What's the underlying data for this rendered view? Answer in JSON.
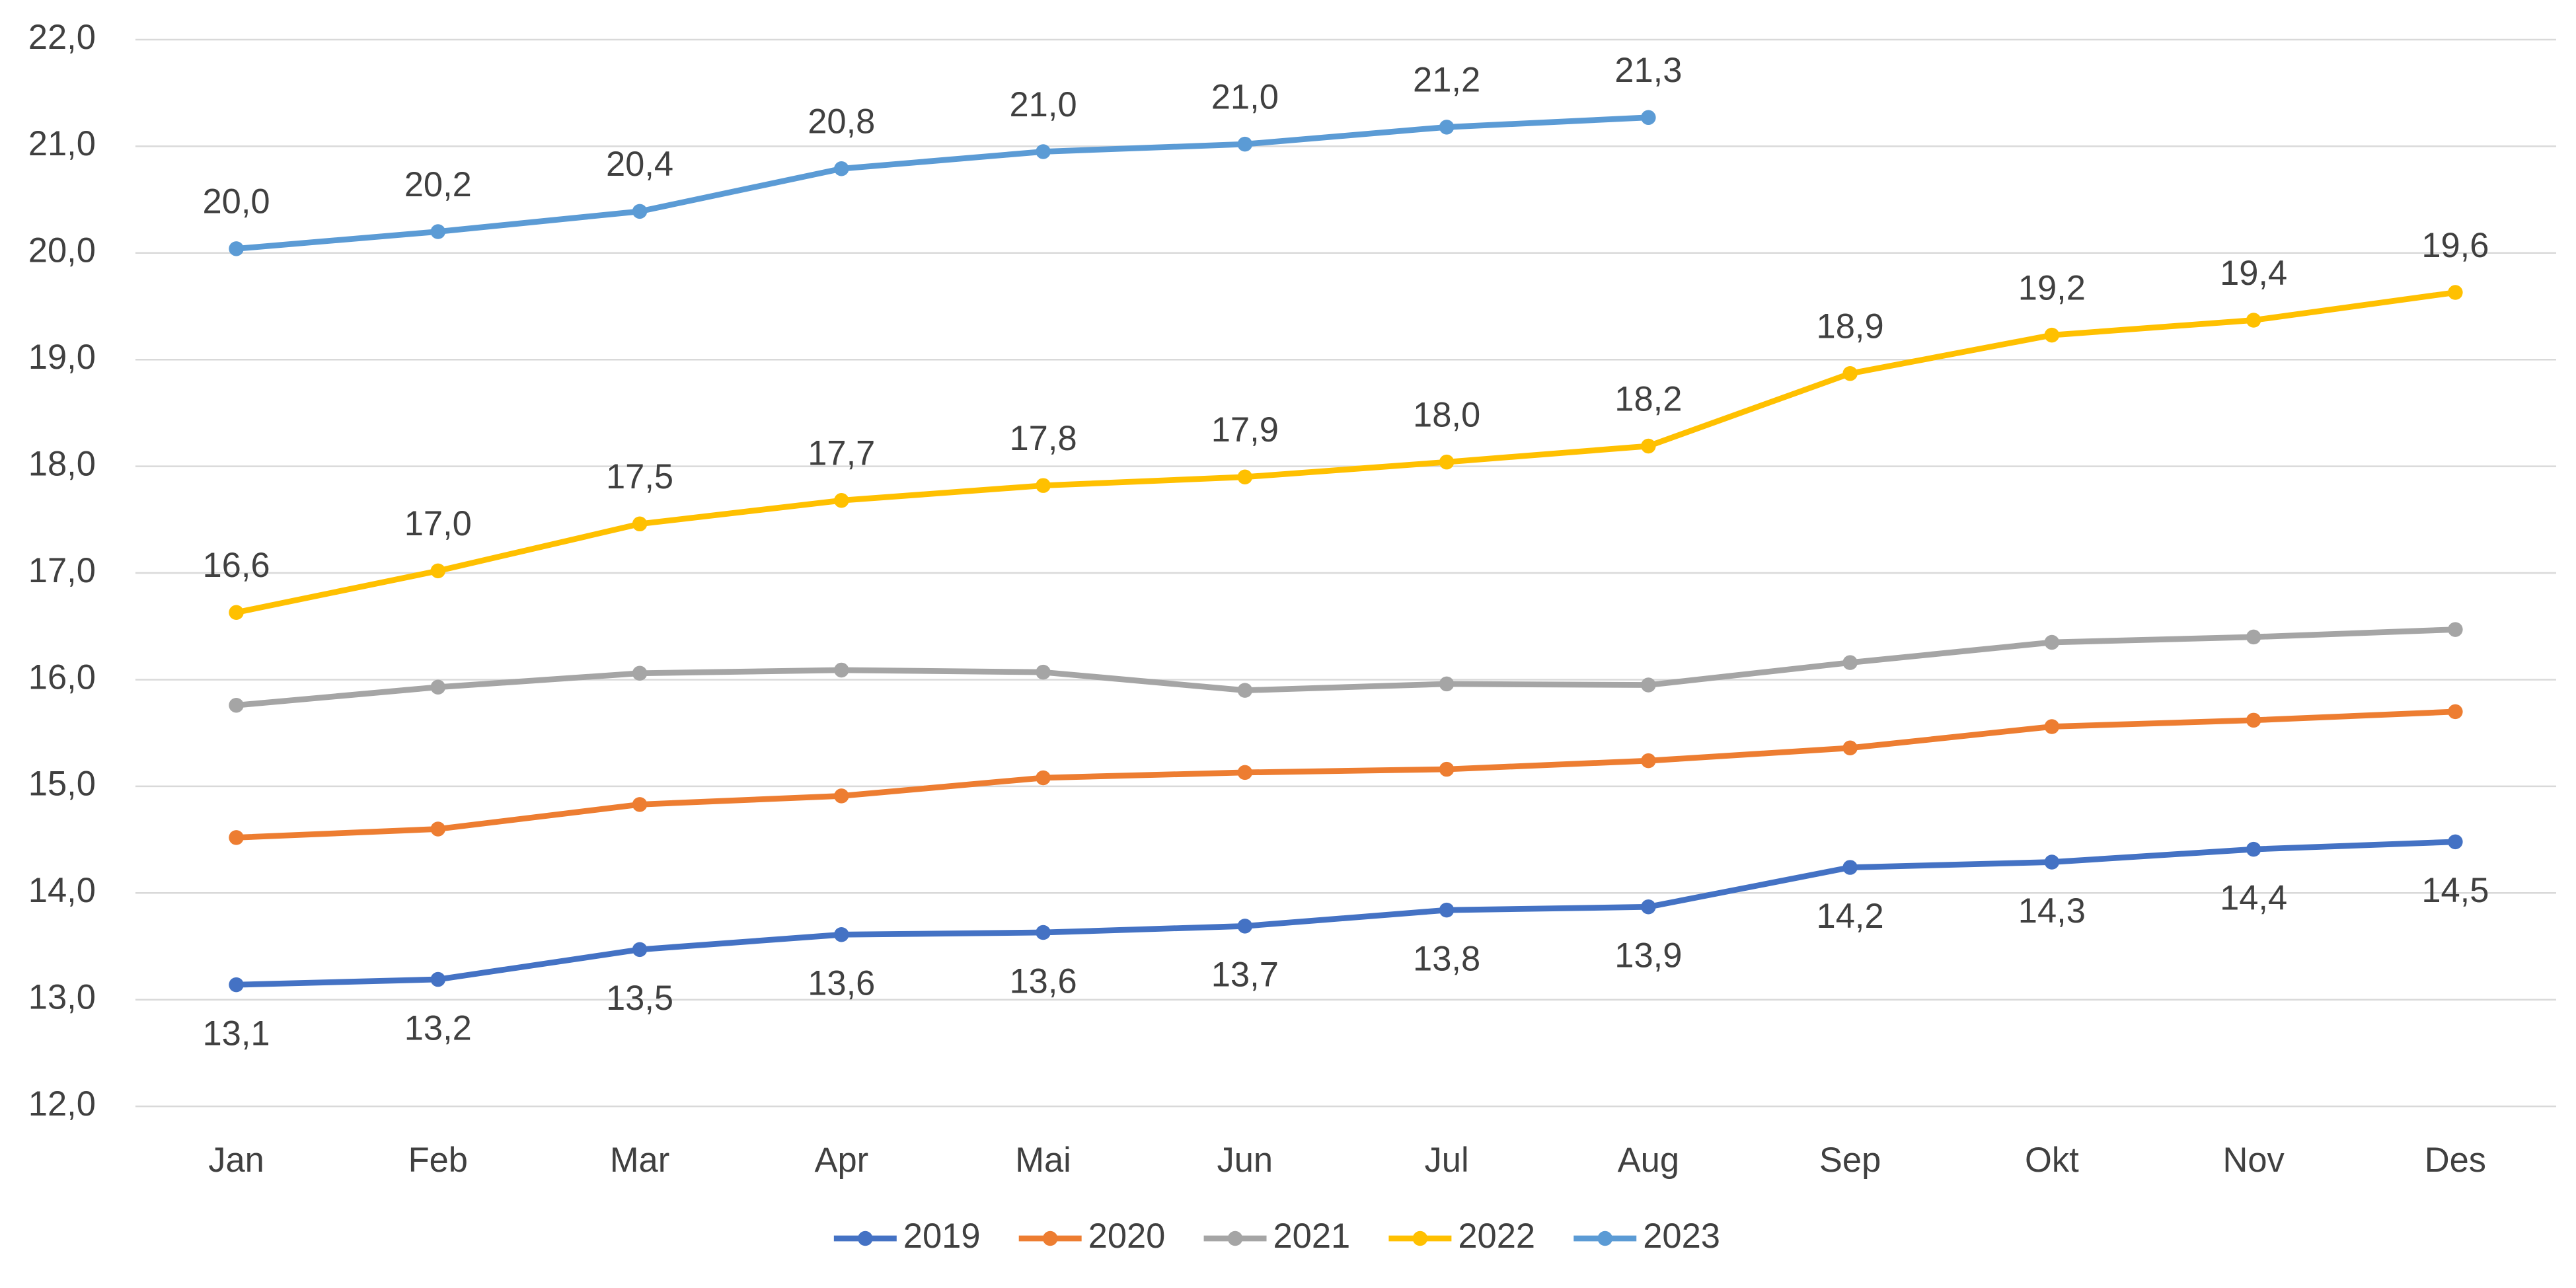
{
  "chart_data": {
    "type": "line",
    "categories": [
      "Jan",
      "Feb",
      "Mar",
      "Apr",
      "Mai",
      "Jun",
      "Jul",
      "Aug",
      "Sep",
      "Okt",
      "Nov",
      "Des"
    ],
    "ylim": [
      12,
      22
    ],
    "yticks": [
      {
        "value": 12,
        "label": "12,0"
      },
      {
        "value": 13,
        "label": "13,0"
      },
      {
        "value": 14,
        "label": "14,0"
      },
      {
        "value": 15,
        "label": "15,0"
      },
      {
        "value": 16,
        "label": "16,0"
      },
      {
        "value": 17,
        "label": "17,0"
      },
      {
        "value": 18,
        "label": "18,0"
      },
      {
        "value": 19,
        "label": "19,0"
      },
      {
        "value": 20,
        "label": "20,0"
      },
      {
        "value": 21,
        "label": "21,0"
      },
      {
        "value": 22,
        "label": "22,0"
      }
    ],
    "grid": true,
    "legend": "bottom",
    "series": [
      {
        "name": "2019",
        "color": "#4472c4",
        "values": [
          13.14,
          13.19,
          13.47,
          13.61,
          13.63,
          13.69,
          13.84,
          13.87,
          14.24,
          14.29,
          14.41,
          14.48
        ],
        "value_labels": [
          "13,1",
          "13,2",
          "13,5",
          "13,6",
          "13,6",
          "13,7",
          "13,8",
          "13,9",
          "14,2",
          "14,3",
          "14,4",
          "14,5"
        ]
      },
      {
        "name": "2020",
        "color": "#ed7d31",
        "values": [
          14.52,
          14.6,
          14.83,
          14.91,
          15.08,
          15.13,
          15.16,
          15.24,
          15.36,
          15.56,
          15.62,
          15.7
        ]
      },
      {
        "name": "2021",
        "color": "#a5a5a5",
        "values": [
          15.76,
          15.93,
          16.06,
          16.09,
          16.07,
          15.9,
          15.96,
          15.95,
          16.16,
          16.35,
          16.4,
          16.47
        ]
      },
      {
        "name": "2022",
        "color": "#ffc000",
        "values": [
          16.63,
          17.02,
          17.46,
          17.68,
          17.82,
          17.9,
          18.04,
          18.19,
          18.87,
          19.23,
          19.37,
          19.63
        ],
        "value_labels": [
          "16,6",
          "17,0",
          "17,5",
          "17,7",
          "17,8",
          "17,9",
          "18,0",
          "18,2",
          "18,9",
          "19,2",
          "19,4",
          "19,6"
        ]
      },
      {
        "name": "2023",
        "color": "#5b9bd5",
        "values": [
          20.04,
          20.2,
          20.39,
          20.79,
          20.95,
          21.02,
          21.18,
          21.27,
          null,
          null,
          null,
          null
        ],
        "value_labels": [
          "20,0",
          "20,2",
          "20,4",
          "20,8",
          "21,0",
          "21,0",
          "21,2",
          "21,3",
          null,
          null,
          null,
          null
        ]
      }
    ]
  }
}
